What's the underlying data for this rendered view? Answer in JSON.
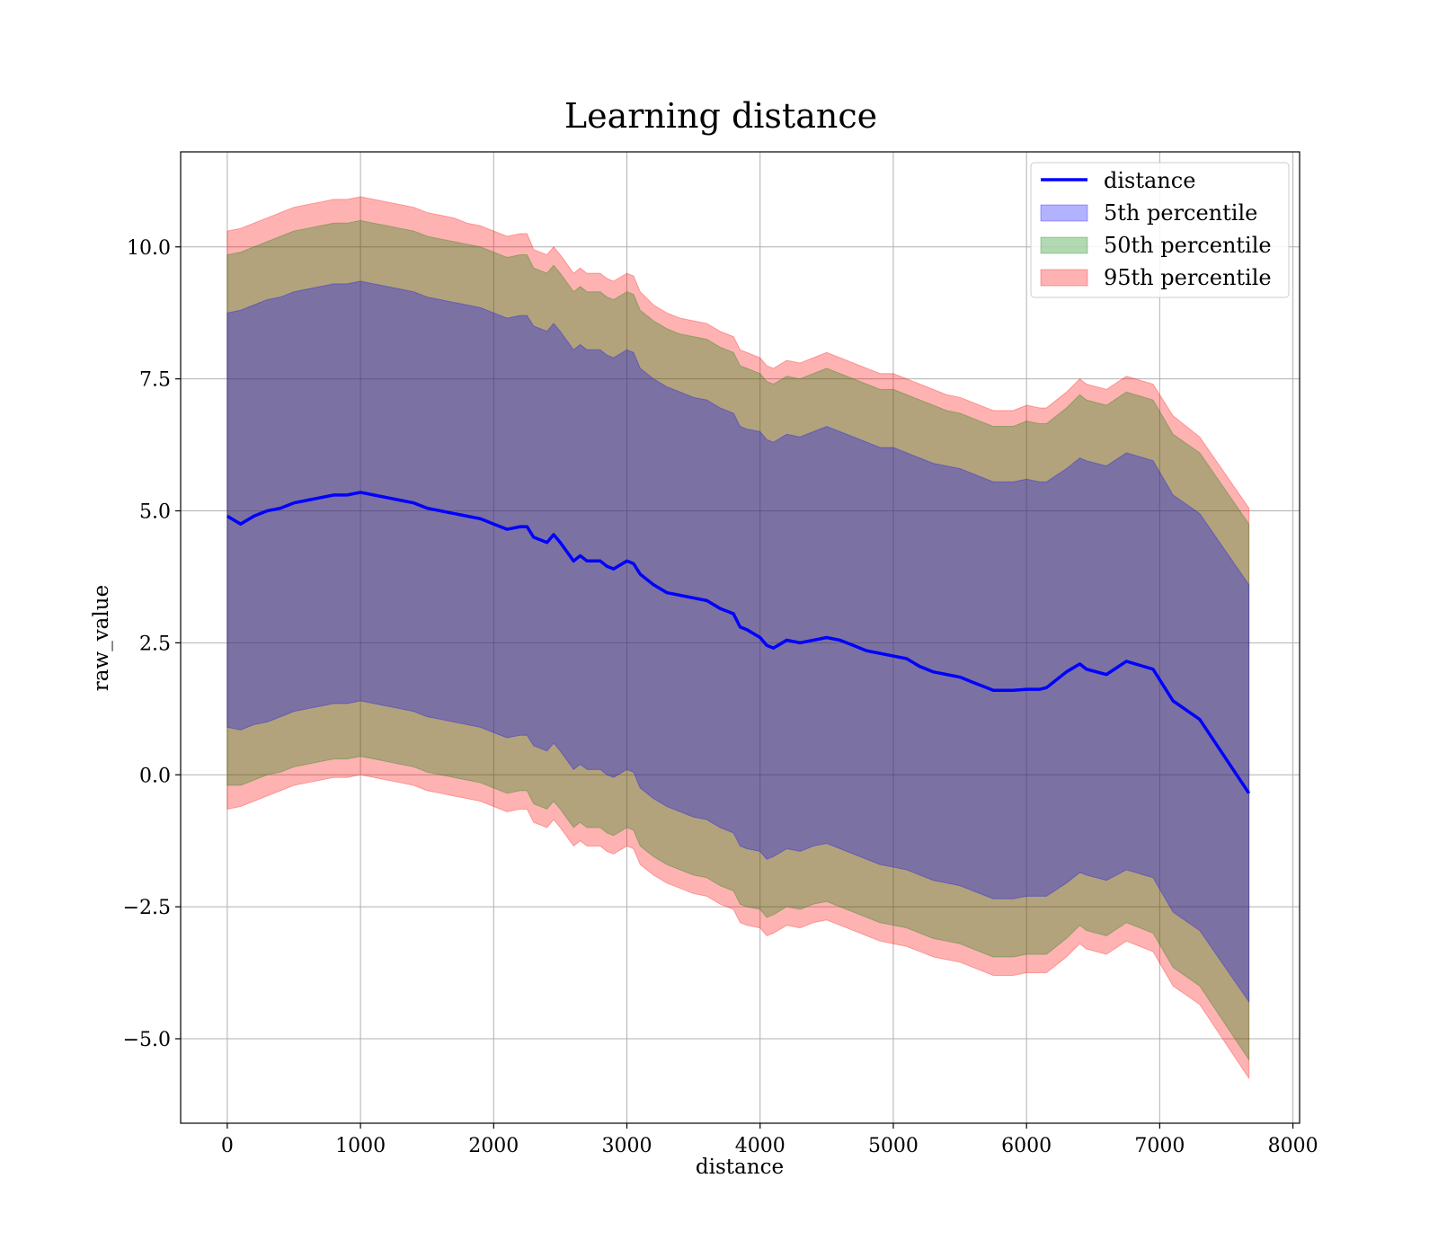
{
  "chart_data": {
    "type": "area",
    "title": "Learning distance",
    "xlabel": "distance",
    "ylabel": "raw_value",
    "xlim": [
      -350,
      8050
    ],
    "ylim": [
      -6.6,
      11.8
    ],
    "xticks": [
      0,
      1000,
      2000,
      3000,
      4000,
      5000,
      6000,
      7000,
      8000
    ],
    "yticks": [
      -5.0,
      -2.5,
      0.0,
      2.5,
      5.0,
      7.5,
      10.0
    ],
    "grid": true,
    "legend_position": "top-right",
    "colors": {
      "line": "#0000ff",
      "p5": "#0000ff",
      "p50": "#008000",
      "p95": "#ff0000"
    },
    "x": [
      0,
      100,
      200,
      300,
      400,
      500,
      600,
      700,
      800,
      900,
      1000,
      1100,
      1200,
      1300,
      1400,
      1500,
      1600,
      1700,
      1800,
      1900,
      2000,
      2100,
      2200,
      2250,
      2300,
      2400,
      2450,
      2500,
      2600,
      2650,
      2700,
      2800,
      2850,
      2900,
      3000,
      3050,
      3100,
      3200,
      3300,
      3400,
      3500,
      3600,
      3700,
      3800,
      3850,
      3900,
      4000,
      4050,
      4100,
      4200,
      4300,
      4400,
      4500,
      4600,
      4700,
      4800,
      4900,
      5000,
      5100,
      5200,
      5300,
      5400,
      5500,
      5600,
      5700,
      5750,
      5800,
      5900,
      6000,
      6100,
      6150,
      6300,
      6400,
      6450,
      6600,
      6750,
      6950,
      7100,
      7300,
      7670
    ],
    "series": [
      {
        "name": "distance",
        "values": [
          4.9,
          4.75,
          4.9,
          5.0,
          5.05,
          5.15,
          5.2,
          5.25,
          5.3,
          5.3,
          5.35,
          5.3,
          5.25,
          5.2,
          5.15,
          5.05,
          5.0,
          4.95,
          4.9,
          4.85,
          4.75,
          4.65,
          4.7,
          4.7,
          4.5,
          4.4,
          4.55,
          4.4,
          4.05,
          4.15,
          4.05,
          4.05,
          3.95,
          3.9,
          4.05,
          4.0,
          3.8,
          3.6,
          3.45,
          3.4,
          3.35,
          3.3,
          3.15,
          3.05,
          2.8,
          2.75,
          2.6,
          2.45,
          2.4,
          2.55,
          2.5,
          2.55,
          2.6,
          2.55,
          2.45,
          2.35,
          2.3,
          2.25,
          2.2,
          2.05,
          1.95,
          1.9,
          1.85,
          1.75,
          1.65,
          1.6,
          1.6,
          1.6,
          1.62,
          1.62,
          1.65,
          1.95,
          2.1,
          2.0,
          1.9,
          2.15,
          2.0,
          1.4,
          1.05,
          -0.35
        ]
      },
      {
        "name": "5th percentile",
        "upper": [
          8.75,
          8.8,
          8.9,
          9.0,
          9.05,
          9.15,
          9.2,
          9.25,
          9.3,
          9.3,
          9.35,
          9.3,
          9.25,
          9.2,
          9.15,
          9.05,
          9.0,
          8.95,
          8.9,
          8.85,
          8.75,
          8.65,
          8.7,
          8.7,
          8.5,
          8.4,
          8.55,
          8.4,
          8.05,
          8.15,
          8.05,
          8.05,
          7.95,
          7.9,
          8.05,
          8.0,
          7.7,
          7.5,
          7.35,
          7.25,
          7.15,
          7.1,
          6.95,
          6.85,
          6.6,
          6.55,
          6.5,
          6.35,
          6.3,
          6.45,
          6.4,
          6.5,
          6.6,
          6.5,
          6.4,
          6.3,
          6.2,
          6.2,
          6.1,
          6.0,
          5.9,
          5.85,
          5.8,
          5.7,
          5.6,
          5.55,
          5.55,
          5.55,
          5.6,
          5.55,
          5.55,
          5.8,
          6.0,
          5.95,
          5.85,
          6.1,
          5.95,
          5.3,
          4.95,
          3.6
        ],
        "lower": [
          0.9,
          0.85,
          0.95,
          1.0,
          1.1,
          1.2,
          1.25,
          1.3,
          1.35,
          1.35,
          1.4,
          1.35,
          1.3,
          1.25,
          1.2,
          1.1,
          1.05,
          1.0,
          0.95,
          0.9,
          0.8,
          0.7,
          0.75,
          0.75,
          0.55,
          0.45,
          0.6,
          0.45,
          0.1,
          0.2,
          0.1,
          0.1,
          0.0,
          -0.05,
          0.1,
          0.05,
          -0.25,
          -0.45,
          -0.6,
          -0.7,
          -0.8,
          -0.85,
          -1.0,
          -1.1,
          -1.35,
          -1.4,
          -1.45,
          -1.6,
          -1.55,
          -1.4,
          -1.45,
          -1.35,
          -1.3,
          -1.4,
          -1.5,
          -1.6,
          -1.7,
          -1.75,
          -1.8,
          -1.9,
          -2.0,
          -2.05,
          -2.1,
          -2.2,
          -2.3,
          -2.35,
          -2.35,
          -2.35,
          -2.3,
          -2.3,
          -2.3,
          -2.05,
          -1.85,
          -1.9,
          -2.0,
          -1.8,
          -1.95,
          -2.6,
          -2.95,
          -4.3
        ]
      },
      {
        "name": "50th percentile",
        "upper": [
          9.85,
          9.9,
          10.0,
          10.1,
          10.2,
          10.3,
          10.35,
          10.4,
          10.45,
          10.45,
          10.5,
          10.45,
          10.4,
          10.35,
          10.3,
          10.2,
          10.15,
          10.1,
          10.05,
          10.0,
          9.9,
          9.8,
          9.85,
          9.85,
          9.6,
          9.5,
          9.65,
          9.5,
          9.15,
          9.25,
          9.15,
          9.15,
          9.05,
          9.0,
          9.15,
          9.1,
          8.8,
          8.6,
          8.45,
          8.35,
          8.3,
          8.25,
          8.1,
          8.0,
          7.75,
          7.7,
          7.6,
          7.45,
          7.4,
          7.55,
          7.5,
          7.6,
          7.7,
          7.6,
          7.5,
          7.4,
          7.3,
          7.3,
          7.2,
          7.1,
          7.0,
          6.9,
          6.85,
          6.75,
          6.65,
          6.6,
          6.6,
          6.6,
          6.7,
          6.65,
          6.65,
          6.95,
          7.2,
          7.1,
          7.0,
          7.25,
          7.1,
          6.45,
          6.1,
          4.75
        ],
        "lower": [
          -0.2,
          -0.2,
          -0.1,
          0.0,
          0.05,
          0.15,
          0.2,
          0.25,
          0.3,
          0.3,
          0.35,
          0.3,
          0.25,
          0.2,
          0.15,
          0.05,
          0.0,
          -0.05,
          -0.1,
          -0.15,
          -0.25,
          -0.35,
          -0.3,
          -0.3,
          -0.55,
          -0.65,
          -0.5,
          -0.65,
          -1.0,
          -0.9,
          -1.0,
          -1.0,
          -1.1,
          -1.15,
          -1.0,
          -1.05,
          -1.35,
          -1.55,
          -1.7,
          -1.8,
          -1.9,
          -1.95,
          -2.1,
          -2.2,
          -2.45,
          -2.5,
          -2.55,
          -2.7,
          -2.65,
          -2.5,
          -2.55,
          -2.45,
          -2.4,
          -2.5,
          -2.6,
          -2.7,
          -2.8,
          -2.85,
          -2.9,
          -3.0,
          -3.1,
          -3.15,
          -3.2,
          -3.3,
          -3.4,
          -3.45,
          -3.45,
          -3.45,
          -3.4,
          -3.4,
          -3.4,
          -3.1,
          -2.85,
          -2.95,
          -3.05,
          -2.8,
          -3.0,
          -3.65,
          -4.0,
          -5.4
        ]
      },
      {
        "name": "95th percentile",
        "upper": [
          10.3,
          10.35,
          10.45,
          10.55,
          10.65,
          10.75,
          10.8,
          10.85,
          10.9,
          10.9,
          10.95,
          10.9,
          10.85,
          10.8,
          10.75,
          10.65,
          10.6,
          10.55,
          10.45,
          10.4,
          10.3,
          10.2,
          10.25,
          10.25,
          9.95,
          9.85,
          10.0,
          9.85,
          9.5,
          9.6,
          9.5,
          9.5,
          9.4,
          9.35,
          9.5,
          9.45,
          9.15,
          8.9,
          8.75,
          8.65,
          8.6,
          8.55,
          8.4,
          8.3,
          8.05,
          8.0,
          7.9,
          7.75,
          7.7,
          7.85,
          7.8,
          7.9,
          8.0,
          7.9,
          7.8,
          7.7,
          7.6,
          7.6,
          7.5,
          7.4,
          7.3,
          7.2,
          7.15,
          7.05,
          6.95,
          6.9,
          6.9,
          6.9,
          7.0,
          6.95,
          6.95,
          7.25,
          7.5,
          7.4,
          7.3,
          7.55,
          7.4,
          6.8,
          6.4,
          5.05
        ],
        "lower": [
          -0.65,
          -0.6,
          -0.5,
          -0.4,
          -0.3,
          -0.2,
          -0.15,
          -0.1,
          -0.05,
          -0.05,
          0.0,
          -0.05,
          -0.1,
          -0.15,
          -0.2,
          -0.3,
          -0.35,
          -0.4,
          -0.45,
          -0.5,
          -0.6,
          -0.7,
          -0.65,
          -0.65,
          -0.9,
          -1.0,
          -0.85,
          -1.0,
          -1.35,
          -1.25,
          -1.35,
          -1.35,
          -1.45,
          -1.5,
          -1.35,
          -1.4,
          -1.7,
          -1.9,
          -2.05,
          -2.15,
          -2.25,
          -2.3,
          -2.45,
          -2.55,
          -2.8,
          -2.85,
          -2.9,
          -3.05,
          -3.0,
          -2.85,
          -2.9,
          -2.8,
          -2.75,
          -2.85,
          -2.95,
          -3.05,
          -3.15,
          -3.2,
          -3.25,
          -3.35,
          -3.45,
          -3.5,
          -3.55,
          -3.65,
          -3.75,
          -3.8,
          -3.8,
          -3.8,
          -3.75,
          -3.75,
          -3.75,
          -3.45,
          -3.2,
          -3.3,
          -3.4,
          -3.15,
          -3.35,
          -4.0,
          -4.35,
          -5.75
        ]
      }
    ]
  }
}
